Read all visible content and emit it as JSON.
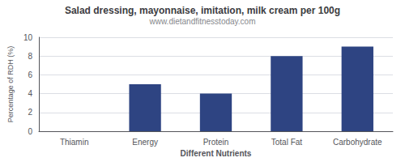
{
  "chart_data": {
    "type": "bar",
    "title": "Salad dressing, mayonnaise, imitation, milk cream per 100g",
    "subtitle": "www.dietandfitnesstoday.com",
    "categories": [
      "Thiamin",
      "Energy",
      "Protein",
      "Total Fat",
      "Carbohydrate"
    ],
    "values": [
      0,
      5,
      4,
      8,
      9
    ],
    "color": "#2e4482",
    "xlabel": "Different Nutrients",
    "ylabel": "Percentage of RDH (%)",
    "ylim": [
      0,
      10
    ],
    "yticks": [
      0,
      2,
      4,
      6,
      8,
      10
    ],
    "grid": true
  }
}
